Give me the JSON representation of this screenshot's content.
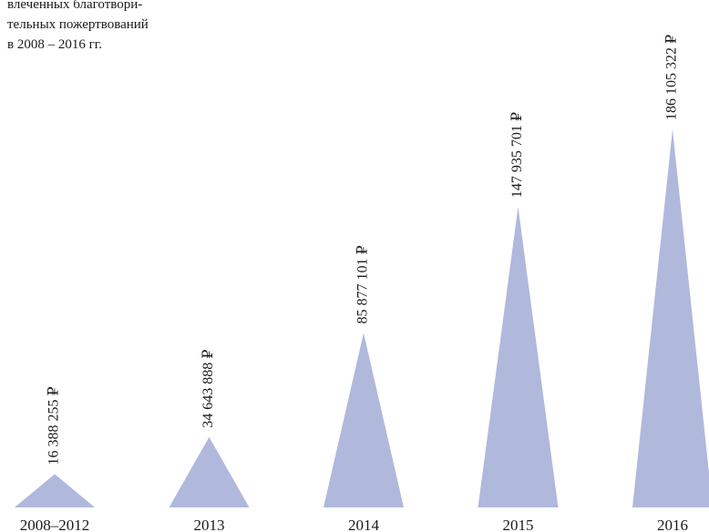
{
  "chart_data": {
    "type": "triangle-bar",
    "title_lines": [
      "влеченных благотвори-",
      "тельных пожертвований",
      "в 2008 – 2016 гг."
    ],
    "categories": [
      "2008–2012",
      "2013",
      "2014",
      "2015",
      "2016"
    ],
    "values": [
      16388255,
      34643888,
      85877101,
      147935701,
      186105322
    ],
    "value_labels": [
      "16 388 255 ₽",
      "34 643 888 ₽",
      "85 877 101 ₽",
      "147 935 701 ₽",
      "186 105 322 ₽"
    ],
    "color": "#b0b8dc"
  }
}
